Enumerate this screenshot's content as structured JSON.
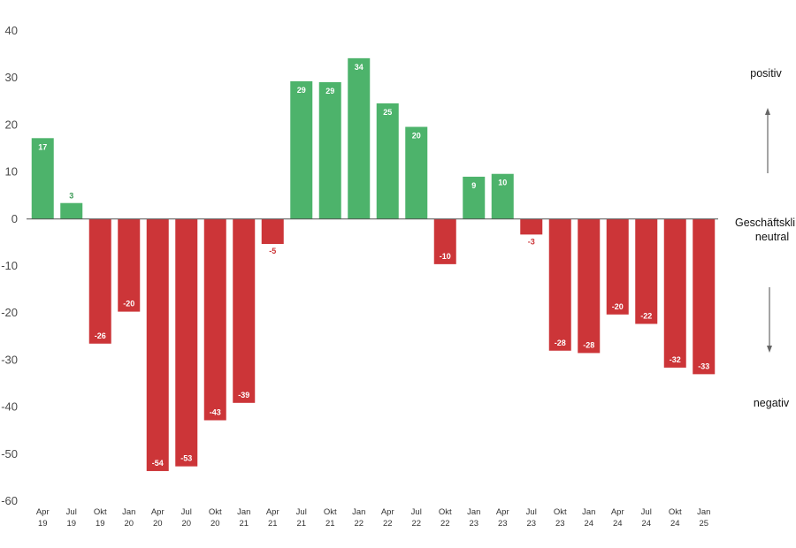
{
  "chart_data": {
    "type": "bar",
    "categories": [
      [
        "Apr",
        "19"
      ],
      [
        "Jul",
        "19"
      ],
      [
        "Okt",
        "19"
      ],
      [
        "Jan",
        "20"
      ],
      [
        "Apr",
        "20"
      ],
      [
        "Jul",
        "20"
      ],
      [
        "Okt",
        "20"
      ],
      [
        "Jan",
        "21"
      ],
      [
        "Apr",
        "21"
      ],
      [
        "Jul",
        "21"
      ],
      [
        "Okt",
        "21"
      ],
      [
        "Jan",
        "22"
      ],
      [
        "Apr",
        "22"
      ],
      [
        "Jul",
        "22"
      ],
      [
        "Okt",
        "22"
      ],
      [
        "Jan",
        "23"
      ],
      [
        "Apr",
        "23"
      ],
      [
        "Jul",
        "23"
      ],
      [
        "Okt",
        "23"
      ],
      [
        "Jan",
        "24"
      ],
      [
        "Apr",
        "24"
      ],
      [
        "Jul",
        "24"
      ],
      [
        "Okt",
        "24"
      ],
      [
        "Jan",
        "25"
      ]
    ],
    "values": [
      17.2,
      3.4,
      -26.5,
      -19.7,
      -53.6,
      -52.6,
      -42.8,
      -39.1,
      -5.3,
      29.3,
      29.1,
      34.2,
      24.6,
      19.6,
      -9.6,
      9.0,
      9.6,
      -3.3,
      -28.0,
      -28.5,
      -20.3,
      -22.3,
      -31.6,
      -33.0
    ],
    "labels": [
      "17",
      "3",
      "-26",
      "-20",
      "-54",
      "-53",
      "-43",
      "-39",
      "-5",
      "29",
      "29",
      "34",
      "25",
      "20",
      "-10",
      "9",
      "10",
      "-3",
      "-28",
      "-28",
      "-20",
      "-22",
      "-32",
      "-33"
    ],
    "ylim": [
      -60,
      40
    ],
    "yticks": [
      "40",
      "30",
      "20",
      "10",
      "0",
      "-10",
      "-20",
      "-30",
      "-40",
      "-50",
      "-60"
    ],
    "grid": false,
    "colors": {
      "positive": "#4db36b",
      "negative": "#cc3538",
      "zero_line": "#555555",
      "small_positive_label": "#3a9a55",
      "small_negative_label": "#cc3538",
      "arrow": "#666666"
    },
    "annotations": {
      "positive": "positiv",
      "neutral_line1": "Geschäftsklima",
      "neutral_line2": "neutral",
      "negative": "negativ"
    }
  }
}
